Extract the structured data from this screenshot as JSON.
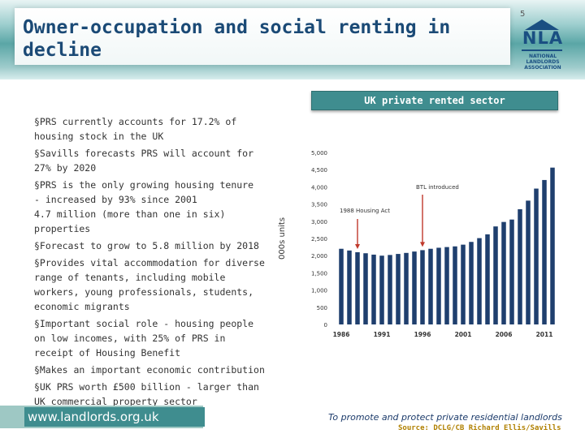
{
  "slide": {
    "title": "Owner-occupation and social renting in decline",
    "page_number": "5"
  },
  "logo": {
    "acronym": "NLA",
    "line1": "NATIONAL",
    "line2": "LANDLORDS",
    "line3": "ASSOCIATION"
  },
  "section_header": "UK private rented sector",
  "bullets": [
    "§PRS currently accounts for 17.2% of housing stock in the UK",
    "§Savills forecasts PRS will account for 27% by 2020",
    "§PRS is the only growing housing tenure\n- increased by 93% since 2001\n4.7 million (more than one in six) properties",
    "§Forecast to grow to 5.8 million by 2018",
    "§Provides vital accommodation for diverse range of tenants, including mobile workers, young professionals, students, economic migrants",
    "§Important social role - housing people on low incomes, with 25% of PRS in receipt of Housing Benefit",
    "§Makes an important economic contribution",
    "§UK PRS worth £500 billion - larger than UK commercial property sector"
  ],
  "chart_data": {
    "type": "bar",
    "ylabel": "000s units",
    "ylim": [
      0,
      5000
    ],
    "yticks": [
      "0",
      "500",
      "1,000",
      "1,500",
      "2,000",
      "2,500",
      "3,000",
      "3,500",
      "4,000",
      "4,500",
      "5,000"
    ],
    "xtick_labels": [
      "1986",
      "1991",
      "1996",
      "2001",
      "2006",
      "2011"
    ],
    "categories": [
      "1986",
      "1987",
      "1988",
      "1989",
      "1990",
      "1991",
      "1992",
      "1993",
      "1994",
      "1995",
      "1996",
      "1997",
      "1998",
      "1999",
      "2000",
      "2001",
      "2002",
      "2003",
      "2004",
      "2005",
      "2006",
      "2007",
      "2008",
      "2009",
      "2010",
      "2011",
      "2012"
    ],
    "values": [
      2200,
      2150,
      2100,
      2070,
      2030,
      2000,
      2020,
      2050,
      2080,
      2120,
      2160,
      2200,
      2230,
      2250,
      2270,
      2320,
      2400,
      2510,
      2620,
      2850,
      2980,
      3050,
      3350,
      3600,
      3950,
      4200,
      4560
    ],
    "bar_color": "#1f3f6e",
    "grid": false,
    "annotations": [
      {
        "text": "1988 Housing Act",
        "at": "1988"
      },
      {
        "text": "BTL introduced",
        "at": "1996"
      }
    ],
    "annotation_color": "#c0392b"
  },
  "footer": {
    "url": "www.landlords.org.uk",
    "tagline": "To promote and protect private residential landlords",
    "source": "Source: DCLG/CB Richard Ellis/Savills"
  }
}
